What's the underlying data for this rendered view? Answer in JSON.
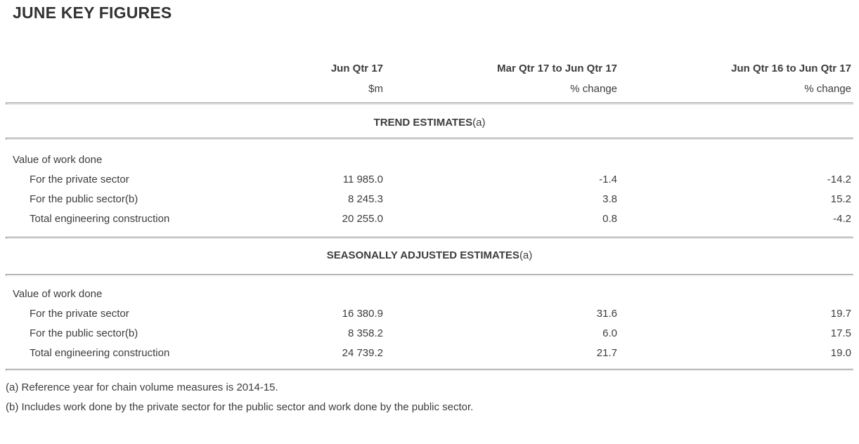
{
  "page": {
    "title": "JUNE KEY FIGURES"
  },
  "table": {
    "columns": [
      {
        "line1": "Jun Qtr 17",
        "line2": "$m"
      },
      {
        "line1": "Mar Qtr 17 to Jun Qtr 17",
        "line2": "% change"
      },
      {
        "line1": "Jun Qtr 16 to Jun Qtr 17",
        "line2": "% change"
      }
    ],
    "sections": [
      {
        "heading": "TREND ESTIMATES",
        "heading_note": "(a)",
        "group_label": "Value of work done",
        "rows": [
          {
            "label": "For the private sector",
            "values": [
              "11 985.0",
              "-1.4",
              "-14.2"
            ]
          },
          {
            "label": "For the public sector(b)",
            "values": [
              "8 245.3",
              "3.8",
              "15.2"
            ]
          },
          {
            "label": "Total engineering construction",
            "values": [
              "20 255.0",
              "0.8",
              "-4.2"
            ]
          }
        ]
      },
      {
        "heading": "SEASONALLY ADJUSTED ESTIMATES",
        "heading_note": "(a)",
        "group_label": "Value of work done",
        "rows": [
          {
            "label": "For the private sector",
            "values": [
              "16 380.9",
              "31.6",
              "19.7"
            ]
          },
          {
            "label": "For the public sector(b)",
            "values": [
              "8 358.2",
              "6.0",
              "17.5"
            ]
          },
          {
            "label": "Total engineering construction",
            "values": [
              "24 739.2",
              "21.7",
              "19.0"
            ]
          }
        ]
      }
    ]
  },
  "footnotes": [
    "(a) Reference year for chain volume measures is 2014-15.",
    "(b) Includes work done by the private sector for the public sector and work done by the public sector."
  ],
  "colors": {
    "text": "#3c3c3c",
    "title": "#333333",
    "rule_dark": "#858585",
    "rule_light": "#e3e3e3",
    "background": "#ffffff"
  }
}
